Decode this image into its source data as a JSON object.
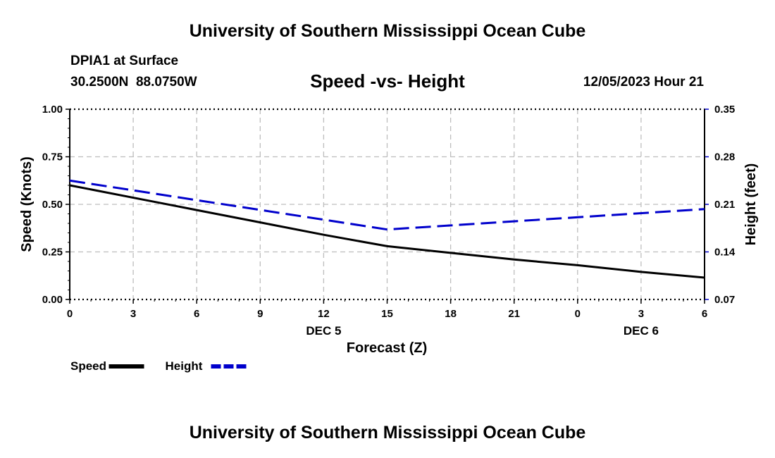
{
  "header": {
    "title": "University of Southern Mississippi Ocean Cube",
    "station": "DPIA1 at Surface",
    "coords": "30.2500N  88.0750W",
    "timestamp": "12/05/2023 Hour 21"
  },
  "footer": {
    "title": "University of Southern Mississippi Ocean Cube"
  },
  "chart_data": {
    "type": "line",
    "title": "Speed -vs- Height",
    "xlabel": "Forecast (Z)",
    "ylabel_left": "Speed (Knots)",
    "ylabel_right": "Height (feet)",
    "x_tick_labels": [
      "0",
      "3",
      "6",
      "9",
      "12",
      "15",
      "18",
      "21",
      "0",
      "3",
      "6"
    ],
    "x_hours": [
      0,
      3,
      6,
      9,
      12,
      15,
      18,
      21,
      24,
      27,
      30
    ],
    "x_range": [
      0,
      30
    ],
    "date_labels": [
      {
        "text": "DEC 5",
        "hour": 12
      },
      {
        "text": "DEC 6",
        "hour": 27
      }
    ],
    "y_left_range": [
      0,
      1
    ],
    "y_left_ticks": [
      "0.00",
      "0.25",
      "0.50",
      "0.75",
      "1.00"
    ],
    "y_right_range": [
      0.07,
      0.35
    ],
    "y_right_ticks": [
      "0.07",
      "0.14",
      "0.21",
      "0.28",
      "0.35"
    ],
    "grid": true,
    "series": [
      {
        "name": "Speed",
        "axis": "left",
        "color": "#000000",
        "dash": false,
        "x": [
          0,
          3,
          6,
          9,
          12,
          15,
          18,
          21,
          24,
          27,
          30
        ],
        "values": [
          0.6,
          0.535,
          0.47,
          0.405,
          0.34,
          0.28,
          0.245,
          0.21,
          0.18,
          0.145,
          0.115
        ]
      },
      {
        "name": "Height",
        "axis": "right",
        "color": "#0000cc",
        "dash": true,
        "x": [
          0,
          15,
          30
        ],
        "values": [
          0.245,
          0.173,
          0.203
        ]
      }
    ],
    "legend": [
      {
        "label": "Speed",
        "color": "#000000",
        "dash": false
      },
      {
        "label": "Height",
        "color": "#0000cc",
        "dash": true
      }
    ],
    "legend_position": "bottom-left"
  }
}
